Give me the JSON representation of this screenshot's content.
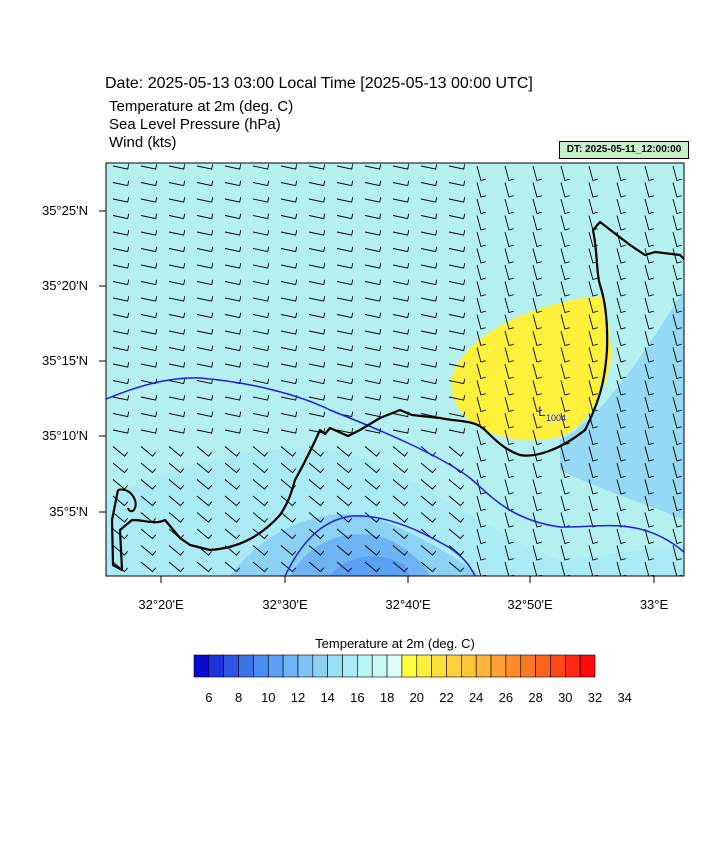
{
  "header": {
    "date_line": "Date: 2025-05-13  03:00 Local Time [2025-05-13  00:00 UTC]",
    "variables": [
      "Temperature at 2m   (deg. C)",
      "Sea Level Pressure   (hPa)",
      "Wind   (kts)"
    ],
    "dt_badge": "DT: 2025-05-11_12:00:00"
  },
  "map": {
    "lat_labels": [
      "35°25'N",
      "35°20'N",
      "35°15'N",
      "35°10'N",
      "35°5'N"
    ],
    "lon_labels": [
      "32°20'E",
      "32°30'E",
      "32°40'E",
      "32°50'E",
      "33°E"
    ],
    "pressure_low_label": "L",
    "pressure_low_value": "1004",
    "background_color": "#b4f0f0",
    "warm_fill_color": "#fff03c",
    "isobar_color": "#1e1ee6",
    "coastline_color": "#000000"
  },
  "colorbar": {
    "title": "Temperature at 2m  (deg. C)",
    "labels": [
      "6",
      "8",
      "10",
      "12",
      "14",
      "16",
      "18",
      "20",
      "22",
      "24",
      "26",
      "28",
      "30",
      "32",
      "34"
    ],
    "colors": [
      "#0a0ad2",
      "#1e32dc",
      "#2d55e6",
      "#3c73eb",
      "#4b8cf0",
      "#5aa0f5",
      "#6eb4f5",
      "#7dc3f5",
      "#8cd2f5",
      "#9be1f5",
      "#aaebf5",
      "#b9f5f5",
      "#c8faf5",
      "#dcfffa",
      "#ffff3c",
      "#fff03c",
      "#ffe13c",
      "#ffd23c",
      "#ffc33c",
      "#ffb43c",
      "#ffa032",
      "#ff8c28",
      "#ff7823",
      "#ff641e",
      "#ff4619",
      "#ff2814",
      "#ff0a0a"
    ]
  }
}
